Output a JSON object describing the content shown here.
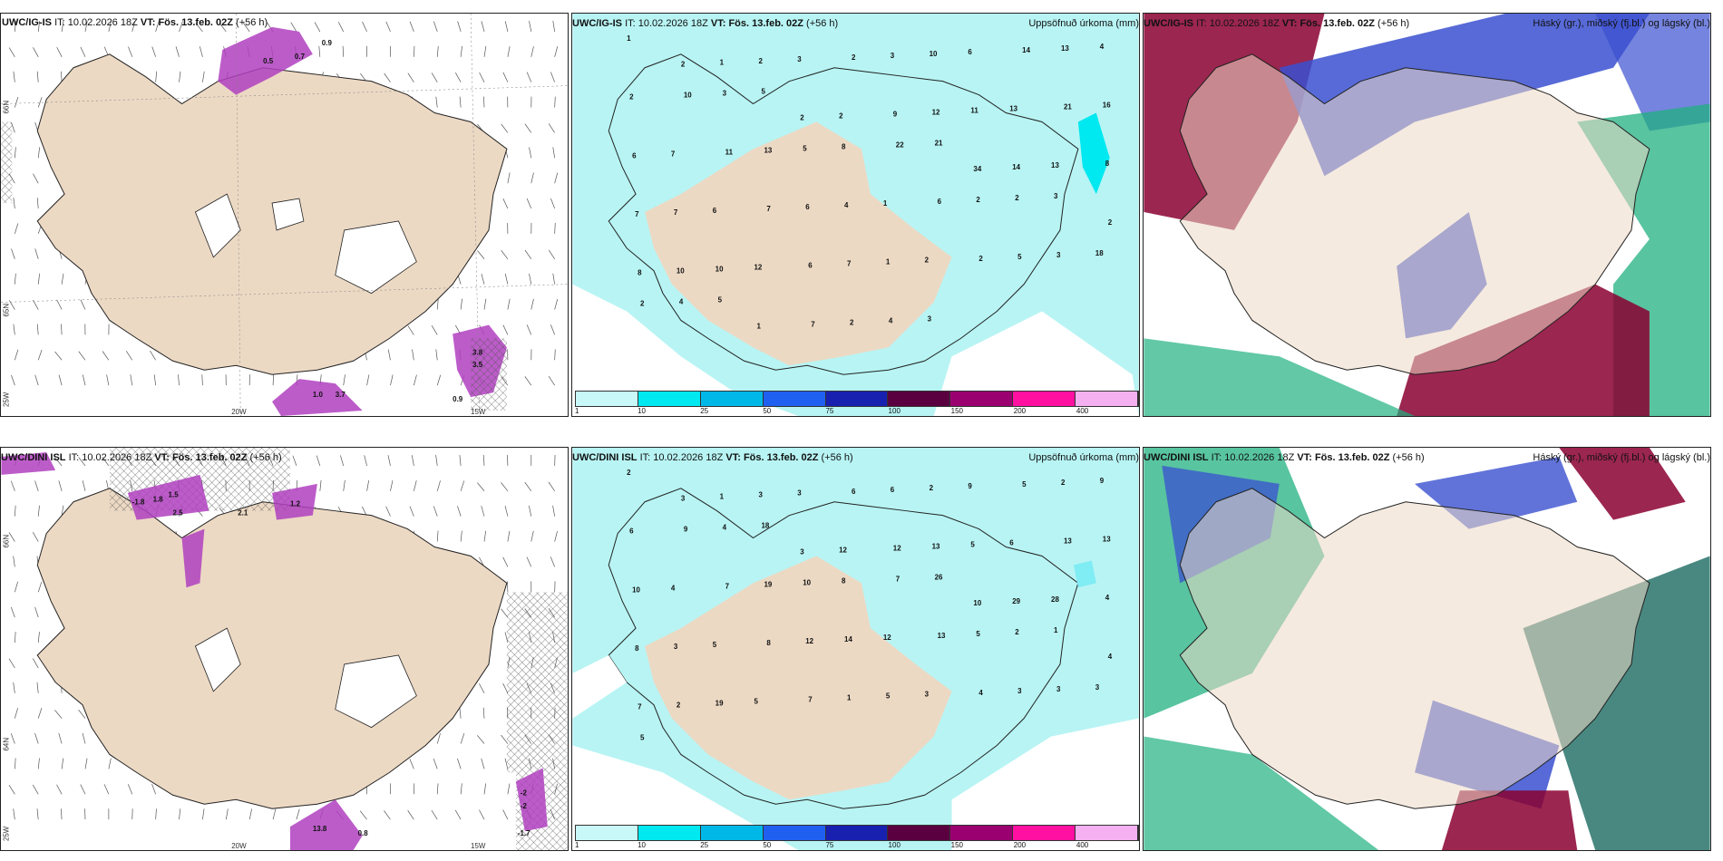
{
  "rows": [
    {
      "model": "UWC/IG-IS",
      "run_label": "IT:",
      "run_time": "10.02.2026 18Z",
      "valid_label": "VT:",
      "valid_time": "Fös. 13.feb. 02Z",
      "lead": "(+56 h)"
    },
    {
      "model": "UWC/DINI ISL",
      "run_label": "IT:",
      "run_time": "10.02.2026 18Z",
      "valid_label": "VT:",
      "valid_time": "Fös. 13.feb. 02Z",
      "lead": "(+56 h)"
    }
  ],
  "panel_titles": {
    "precip": "Uppsöfnuð úrkoma (mm)",
    "clouds": "Háský (gr.), miðský (fj.bl.) og lágský (bl.)"
  },
  "graticule": {
    "lon_20": "20W",
    "lon_15": "15W",
    "lat_66": "66N",
    "lat_65": "65N",
    "lat_64": "64N",
    "lat_25": "25W"
  },
  "colorbar": {
    "labels": [
      "1",
      "10",
      "25",
      "50",
      "75",
      "100",
      "150",
      "200",
      "400"
    ],
    "colors": [
      "#c8f8f8",
      "#00e8f0",
      "#00b8e8",
      "#2060f0",
      "#1820b0",
      "#5a0040",
      "#9a0070",
      "#ff10a0",
      "#f4b0f0"
    ]
  },
  "colors": {
    "land": "#ecd9c4",
    "precip_light": "#b8f4f4",
    "precip_mid": "#80ecf4",
    "wind_contour": "#a020a0",
    "high_cloud": "#3a50d0",
    "mid_cloud": "#8a0030",
    "low_cloud": "#20b080"
  },
  "contour_labels_top": [
    "0.5",
    "0.7",
    "0.9",
    "3.8",
    "3.5",
    "1.0",
    "3.7",
    "0.9"
  ],
  "contour_labels_bottom": [
    "-1.8",
    "1.8",
    "1.5",
    "2.5",
    "2.1",
    "1.2",
    "13.8",
    "0.8",
    "-2",
    "-2",
    "-1.7"
  ],
  "precip_top": [
    "1",
    "2",
    "1",
    "2",
    "3",
    "2",
    "3",
    "10",
    "6",
    "14",
    "13",
    "4",
    "2",
    "10",
    "3",
    "5",
    "2",
    "2",
    "9",
    "12",
    "11",
    "13",
    "21",
    "16",
    "6",
    "7",
    "11",
    "13",
    "5",
    "8",
    "22",
    "21",
    "34",
    "14",
    "13",
    "8",
    "7",
    "7",
    "6",
    "7",
    "6",
    "4",
    "1",
    "6",
    "2",
    "2",
    "3",
    "2",
    "8",
    "10",
    "10",
    "12",
    "6",
    "7",
    "1",
    "2",
    "2",
    "5",
    "3",
    "18",
    "2",
    "4",
    "5",
    "1",
    "7",
    "2",
    "4",
    "3"
  ],
  "precip_bottom": [
    "2",
    "3",
    "1",
    "3",
    "3",
    "6",
    "6",
    "2",
    "9",
    "5",
    "2",
    "9",
    "6",
    "9",
    "4",
    "18",
    "3",
    "12",
    "12",
    "13",
    "5",
    "6",
    "13",
    "13",
    "10",
    "4",
    "7",
    "19",
    "10",
    "8",
    "7",
    "26",
    "10",
    "29",
    "28",
    "4",
    "8",
    "3",
    "5",
    "8",
    "12",
    "14",
    "12",
    "13",
    "5",
    "2",
    "1",
    "4",
    "7",
    "2",
    "19",
    "5",
    "7",
    "1",
    "5",
    "3",
    "4",
    "3",
    "3",
    "3",
    "5"
  ]
}
